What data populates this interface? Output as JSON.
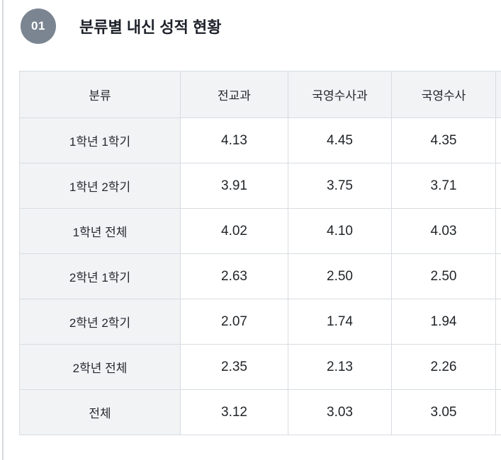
{
  "section": {
    "badge_number": "01",
    "title": "분류별 내신 성적 현황"
  },
  "table": {
    "columns": [
      "분류",
      "전교과",
      "국영수사과",
      "국영수사"
    ],
    "rows": [
      {
        "label": "1학년 1학기",
        "values": [
          "4.13",
          "4.45",
          "4.35"
        ]
      },
      {
        "label": "1학년 2학기",
        "values": [
          "3.91",
          "3.75",
          "3.71"
        ]
      },
      {
        "label": "1학년 전체",
        "values": [
          "4.02",
          "4.10",
          "4.03"
        ]
      },
      {
        "label": "2학년 1학기",
        "values": [
          "2.63",
          "2.50",
          "2.50"
        ]
      },
      {
        "label": "2학년 2학기",
        "values": [
          "2.07",
          "1.74",
          "1.94"
        ]
      },
      {
        "label": "2학년 전체",
        "values": [
          "2.35",
          "2.13",
          "2.26"
        ]
      },
      {
        "label": "전체",
        "values": [
          "3.12",
          "3.03",
          "3.05"
        ]
      }
    ]
  },
  "colors": {
    "badge_background": "#7b8592",
    "header_background": "#f1f3f5",
    "border": "#d8dce1",
    "text": "#212529"
  }
}
